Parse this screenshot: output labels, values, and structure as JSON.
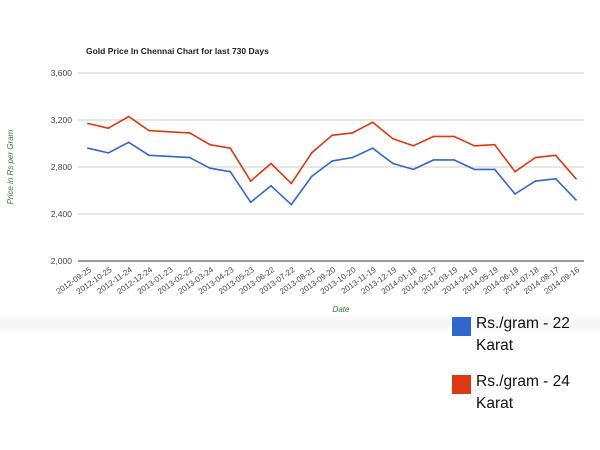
{
  "chart_data": {
    "type": "line",
    "title": "Gold Price In Chennai Chart for last 730 Days",
    "xlabel": "Date",
    "ylabel": "Price in Rs per Gram",
    "ylim": [
      2000,
      3600
    ],
    "yticks": [
      2000,
      2400,
      2800,
      3200,
      3600
    ],
    "ytick_labels": [
      "2,000",
      "2,400",
      "2,800",
      "3,200",
      "3,600"
    ],
    "grid": true,
    "legend_position": "bottom-right",
    "x": [
      "2012-09-25",
      "2012-10-25",
      "2012-11-24",
      "2012-12-24",
      "2013-01-23",
      "2013-02-22",
      "2013-03-24",
      "2013-04-23",
      "2013-05-23",
      "2013-06-22",
      "2013-07-22",
      "2013-08-21",
      "2013-09-20",
      "2013-10-20",
      "2013-11-19",
      "2013-12-19",
      "2014-01-18",
      "2014-02-17",
      "2014-03-19",
      "2014-04-19",
      "2014-05-19",
      "2014-06-18",
      "2014-07-18",
      "2014-08-17",
      "2014-09-16"
    ],
    "series": [
      {
        "name": "Rs./gram - 22 Karat",
        "color": "#3366cc",
        "values": [
          2960,
          2920,
          3010,
          2900,
          2890,
          2880,
          2790,
          2760,
          2500,
          2640,
          2480,
          2720,
          2850,
          2880,
          2960,
          2830,
          2780,
          2860,
          2860,
          2780,
          2780,
          2570,
          2680,
          2700,
          2520
        ]
      },
      {
        "name": "Rs./gram - 24 Karat",
        "color": "#dc3912",
        "values": [
          3170,
          3130,
          3230,
          3110,
          3100,
          3090,
          2990,
          2960,
          2680,
          2830,
          2660,
          2920,
          3070,
          3090,
          3180,
          3040,
          2980,
          3060,
          3060,
          2980,
          2990,
          2760,
          2880,
          2900,
          2700
        ]
      }
    ]
  }
}
